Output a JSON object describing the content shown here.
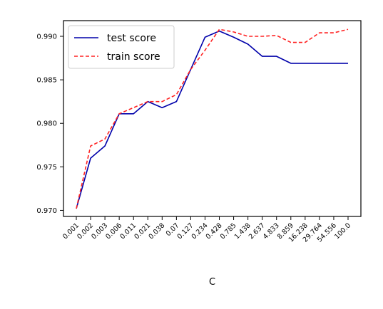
{
  "chart_data": {
    "type": "line",
    "title": "",
    "xlabel": "C",
    "ylabel": "",
    "categories": [
      "0.001",
      "0.002",
      "0.003",
      "0.006",
      "0.011",
      "0.021",
      "0.038",
      "0.07",
      "0.127",
      "0.234",
      "0.428",
      "0.785",
      "1.438",
      "2.637",
      "4.833",
      "8.859",
      "16.238",
      "29.764",
      "54.556",
      "100.0"
    ],
    "ylim": [
      0.9693,
      0.9918
    ],
    "yticks": [
      0.97,
      0.975,
      0.98,
      0.985,
      0.99
    ],
    "ytick_labels": [
      "0.970",
      "0.975",
      "0.980",
      "0.985",
      "0.990"
    ],
    "grid": false,
    "legend_position": "top-left",
    "series": [
      {
        "name": "test score",
        "color": "#0000aa",
        "style": "solid",
        "values": [
          0.9702,
          0.976,
          0.9774,
          0.9811,
          0.9811,
          0.9825,
          0.9818,
          0.9825,
          0.9862,
          0.9899,
          0.9906,
          0.9899,
          0.9891,
          0.9877,
          0.9877,
          0.9869,
          0.9869,
          0.9869,
          0.9869,
          0.9869
        ]
      },
      {
        "name": "train score",
        "color": "#ff2222",
        "style": "dashed",
        "values": [
          0.9702,
          0.9774,
          0.9782,
          0.9811,
          0.9818,
          0.9825,
          0.9825,
          0.9833,
          0.9862,
          0.9884,
          0.9908,
          0.9905,
          0.99,
          0.99,
          0.9901,
          0.9893,
          0.9893,
          0.9904,
          0.9904,
          0.9908
        ]
      }
    ]
  }
}
